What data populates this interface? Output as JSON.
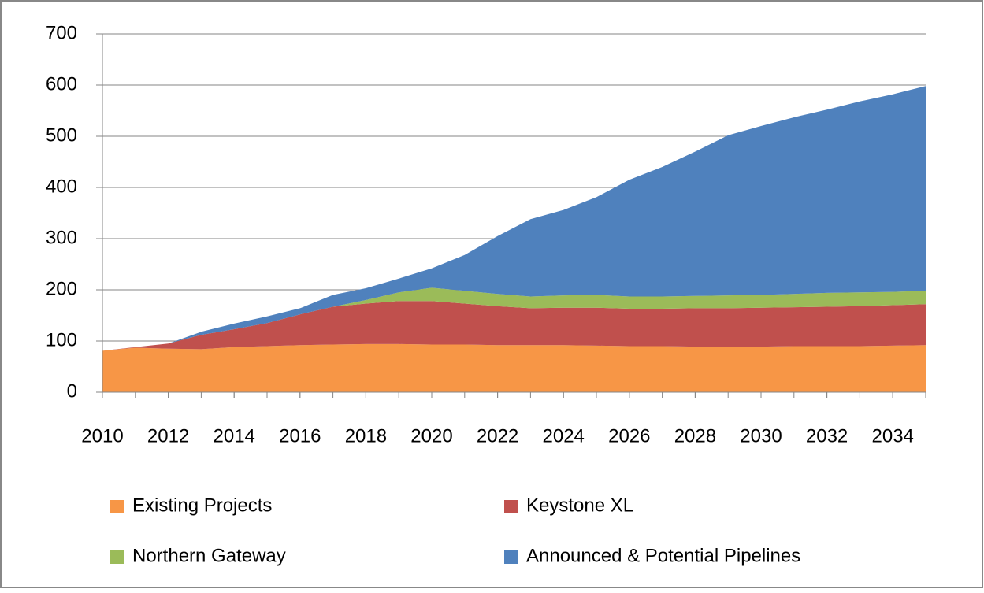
{
  "chart_data": {
    "type": "stacked-area",
    "x": [
      2010,
      2011,
      2012,
      2013,
      2014,
      2015,
      2016,
      2017,
      2018,
      2019,
      2020,
      2021,
      2022,
      2023,
      2024,
      2025,
      2026,
      2027,
      2028,
      2029,
      2030,
      2031,
      2032,
      2033,
      2034,
      2035
    ],
    "series": [
      {
        "name": "Existing Projects",
        "color": "#f79646",
        "values": [
          81,
          87,
          85,
          84,
          88,
          90,
          92,
          93,
          94,
          94,
          93,
          93,
          92,
          92,
          92,
          91,
          90,
          90,
          89,
          89,
          89,
          90,
          90,
          90,
          91,
          92
        ]
      },
      {
        "name": "Keystone XL",
        "color": "#c0504d",
        "values": [
          0,
          1,
          10,
          28,
          35,
          45,
          60,
          74,
          79,
          84,
          85,
          80,
          76,
          72,
          73,
          74,
          73,
          73,
          75,
          75,
          76,
          76,
          77,
          78,
          79,
          80
        ]
      },
      {
        "name": "Northern Gateway",
        "color": "#9bbb59",
        "values": [
          0,
          0,
          0,
          0,
          0,
          0,
          0,
          0,
          7,
          17,
          26,
          25,
          24,
          23,
          24,
          25,
          24,
          24,
          24,
          25,
          25,
          26,
          27,
          27,
          26,
          26
        ]
      },
      {
        "name": "Announced & Potential Pipelines",
        "color": "#4f81bd",
        "values": [
          0,
          0,
          0,
          6,
          11,
          13,
          12,
          23,
          23,
          27,
          38,
          70,
          113,
          151,
          167,
          191,
          228,
          253,
          282,
          313,
          330,
          345,
          358,
          373,
          386,
          400
        ]
      }
    ],
    "xlim": [
      2010,
      2035
    ],
    "xticks": [
      2010,
      2012,
      2014,
      2016,
      2018,
      2020,
      2022,
      2024,
      2026,
      2028,
      2030,
      2032,
      2034
    ],
    "ylim": [
      0,
      700
    ],
    "yticks": [
      0,
      100,
      200,
      300,
      400,
      500,
      600,
      700
    ],
    "grid": true,
    "legend": "bottom"
  }
}
